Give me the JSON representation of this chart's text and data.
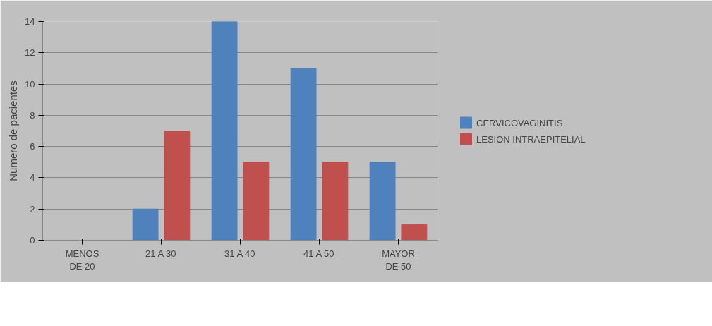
{
  "chart_data": {
    "type": "bar",
    "ylabel": "Numero de pacientes",
    "categories": [
      "MENOS DE 20",
      "21 A 30",
      "31 A 40",
      "41 A 50",
      "MAYOR DE 50"
    ],
    "series": [
      {
        "name": "CERVICOVAGINITIS",
        "color": "#4f81bd",
        "values": [
          0,
          2,
          14,
          11,
          5
        ]
      },
      {
        "name": "LESION INTRAEPITELIAL",
        "color": "#c0504d",
        "values": [
          0,
          7,
          5,
          5,
          1
        ]
      }
    ],
    "ylim": [
      0,
      14
    ],
    "yticks": [
      0,
      2,
      4,
      6,
      8,
      10,
      12,
      14
    ],
    "grid": "y",
    "legend": "right"
  }
}
